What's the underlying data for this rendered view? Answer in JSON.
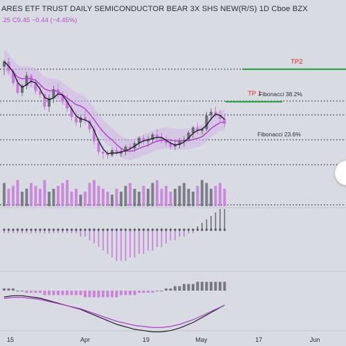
{
  "header": {
    "title": "ARES ETF TRUST DAILY SEMICONDUCTOR BEAR 3X SHS NEW(R/S)   1D   Cboe BZX",
    "ohlc": ".25  C9.45  −0.44 (−4.45%)"
  },
  "annotations": {
    "tp2": "TP2",
    "tp1": "TP 1",
    "fib382": "Fibonacci 38.2%",
    "fib236": "Fibonacci 23.6%"
  },
  "x_axis": {
    "ticks": [
      "15",
      "Apr",
      "19",
      "May",
      "17",
      "Jun"
    ]
  },
  "colors": {
    "background": "#d9dbe3",
    "bull": "#6d6d78",
    "bear": "#c77ad8",
    "ma_fast": "#1c1c28",
    "ma_slow": "#b13cc8",
    "cloud": "#cfb5e6",
    "tp_line": "#33a34a",
    "tp_text": "#e0202a"
  },
  "chart_data": {
    "type": "candlestick",
    "candles": [
      [
        102,
        110,
        92,
        108
      ],
      [
        108,
        112,
        94,
        97
      ],
      [
        97,
        100,
        80,
        83
      ],
      [
        83,
        88,
        70,
        72
      ],
      [
        72,
        82,
        68,
        80
      ],
      [
        80,
        96,
        76,
        92
      ],
      [
        92,
        94,
        80,
        84
      ],
      [
        84,
        88,
        70,
        74
      ],
      [
        74,
        80,
        66,
        70
      ],
      [
        70,
        72,
        52,
        56
      ],
      [
        56,
        70,
        50,
        66
      ],
      [
        66,
        80,
        60,
        76
      ],
      [
        76,
        82,
        66,
        70
      ],
      [
        70,
        74,
        58,
        62
      ],
      [
        62,
        70,
        50,
        54
      ],
      [
        54,
        58,
        40,
        44
      ],
      [
        44,
        50,
        34,
        38
      ],
      [
        38,
        46,
        32,
        44
      ],
      [
        44,
        52,
        36,
        40
      ],
      [
        40,
        42,
        26,
        30
      ],
      [
        30,
        34,
        12,
        16
      ],
      [
        16,
        20,
        0,
        4
      ],
      [
        4,
        10,
        -4,
        2
      ],
      [
        2,
        6,
        -4,
        0
      ],
      [
        0,
        8,
        -2,
        6
      ],
      [
        6,
        10,
        0,
        2
      ],
      [
        2,
        8,
        -2,
        4
      ],
      [
        4,
        12,
        0,
        10
      ],
      [
        10,
        14,
        4,
        8
      ],
      [
        8,
        16,
        4,
        14
      ],
      [
        14,
        22,
        10,
        20
      ],
      [
        20,
        24,
        12,
        16
      ],
      [
        16,
        22,
        10,
        18
      ],
      [
        18,
        26,
        14,
        24
      ],
      [
        24,
        30,
        16,
        20
      ],
      [
        20,
        26,
        14,
        18
      ],
      [
        18,
        22,
        10,
        14
      ],
      [
        14,
        18,
        6,
        10
      ],
      [
        10,
        16,
        6,
        12
      ],
      [
        12,
        20,
        8,
        16
      ],
      [
        16,
        22,
        10,
        18
      ],
      [
        18,
        28,
        16,
        26
      ],
      [
        26,
        34,
        20,
        32
      ],
      [
        32,
        38,
        24,
        28
      ],
      [
        28,
        32,
        24,
        30
      ],
      [
        30,
        50,
        28,
        46
      ],
      [
        46,
        54,
        40,
        50
      ],
      [
        50,
        56,
        44,
        46
      ],
      [
        46,
        52,
        38,
        42
      ],
      [
        42,
        48,
        32,
        36
      ]
    ],
    "volume": [
      8,
      6,
      7,
      9,
      5,
      6,
      8,
      7,
      6,
      9,
      5,
      6,
      7,
      8,
      9,
      5,
      6,
      4,
      5,
      8,
      9,
      7,
      6,
      5,
      4,
      6,
      5,
      7,
      8,
      6,
      5,
      7,
      6,
      8,
      9,
      6,
      7,
      5,
      6,
      7,
      8,
      6,
      5,
      7,
      9,
      8,
      6,
      7,
      8,
      6
    ],
    "histogram_upper": [
      -1,
      -1,
      -1,
      -1,
      -1,
      -1,
      -1,
      -1,
      -1,
      -1,
      -1,
      -1,
      -1,
      -1,
      -1,
      -1,
      -1,
      -2,
      -2,
      -3,
      -4,
      -5,
      -6,
      -7,
      -8,
      -9,
      -9,
      -9,
      -8,
      -8,
      -7,
      -7,
      -6,
      -6,
      -5,
      -5,
      -4,
      -3,
      -3,
      -2,
      -2,
      -1,
      -1,
      1,
      2,
      3,
      4,
      5,
      6,
      6
    ],
    "histogram_lower": [
      1,
      1,
      1,
      0,
      0,
      -1,
      -1,
      -1,
      -1,
      -2,
      -2,
      -2,
      -2,
      -2,
      -2,
      -2,
      -2,
      -2,
      -3,
      -3,
      -3,
      -3,
      -3,
      -3,
      -3,
      -3,
      -2,
      -2,
      -2,
      -2,
      -1,
      -1,
      -1,
      -1,
      0,
      0,
      1,
      1,
      2,
      2,
      3,
      3,
      3,
      4,
      4,
      4,
      4,
      4,
      4,
      4
    ]
  }
}
